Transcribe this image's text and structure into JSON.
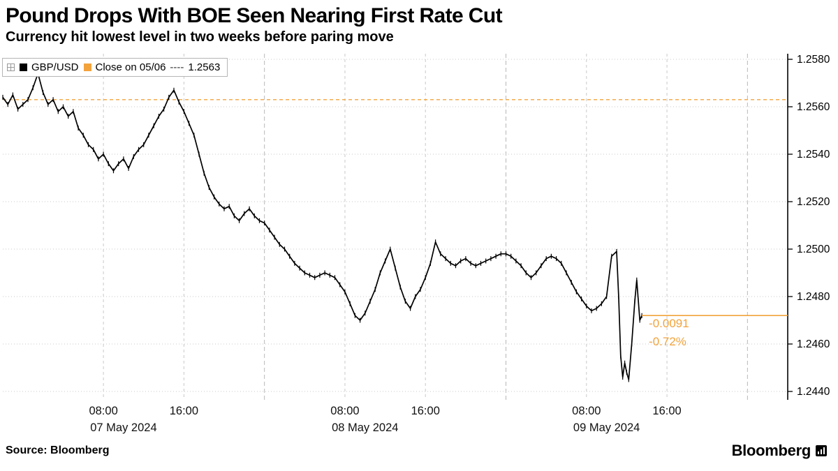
{
  "header": {
    "title": "Pound Drops With BOE Seen Nearing First Rate Cut",
    "subtitle": "Currency hit lowest level in two weeks before paring move"
  },
  "legend": {
    "series_label": "GBP/USD",
    "series_color": "#000000",
    "close_label": "Close on 05/06",
    "close_dash": "----",
    "close_value": "1.2563",
    "close_color": "#F2A33C"
  },
  "chart_data": {
    "type": "line",
    "title": "Pound Drops With BOE Seen Nearing First Rate Cut",
    "subtitle": "Currency hit lowest level in two weeks before paring move",
    "series": [
      {
        "name": "GBP/USD",
        "color": "#000000",
        "x_hours_from_07may": [
          -2,
          -1.5,
          -1,
          -0.5,
          0,
          0.5,
          1,
          1.5,
          2,
          2.5,
          3,
          3.5,
          4,
          4.5,
          5,
          5.5,
          6,
          6.5,
          7,
          7.5,
          8,
          8.5,
          9,
          9.5,
          10,
          10.5,
          11,
          11.5,
          12,
          12.5,
          13,
          13.5,
          14,
          14.5,
          15,
          15.5,
          16,
          16.5,
          17,
          17.5,
          18,
          18.5,
          19,
          19.5,
          20,
          20.5,
          21,
          21.5,
          22,
          22.5,
          23,
          23.5,
          24,
          24.5,
          25,
          25.5,
          26,
          26.5,
          27,
          27.5,
          28,
          28.5,
          29,
          29.5,
          30,
          30.5,
          31,
          31.5,
          32,
          32.5,
          33,
          33.5,
          34,
          34.5,
          35,
          35.5,
          36,
          36.5,
          37,
          37.5,
          38,
          38.5,
          39,
          39.5,
          40,
          40.5,
          41,
          41.5,
          42,
          42.5,
          43,
          43.5,
          44,
          44.5,
          45,
          45.5,
          46,
          46.5,
          47,
          47.5,
          48,
          48.5,
          49,
          49.5,
          50,
          50.5,
          51,
          51.5,
          52,
          52.5,
          53,
          53.5,
          54,
          54.5,
          55,
          55.5,
          56,
          56.5,
          57,
          57.5,
          58,
          58.5,
          59,
          59.2,
          59.4,
          59.6,
          59.8,
          60,
          60.2,
          60.5,
          60.8,
          61,
          61.3,
          61.5
        ],
        "values": [
          1.2564,
          1.2561,
          1.2565,
          1.2559,
          1.2561,
          1.2563,
          1.2568,
          1.2574,
          1.2566,
          1.2561,
          1.2563,
          1.2558,
          1.256,
          1.2556,
          1.2558,
          1.2551,
          1.2548,
          1.2544,
          1.2542,
          1.2538,
          1.254,
          1.2536,
          1.2533,
          1.2536,
          1.2538,
          1.2534,
          1.2539,
          1.2542,
          1.2544,
          1.2548,
          1.2552,
          1.2556,
          1.2559,
          1.2564,
          1.2567,
          1.2562,
          1.2558,
          1.2553,
          1.2548,
          1.254,
          1.2532,
          1.2526,
          1.2522,
          1.2519,
          1.2517,
          1.2518,
          1.2514,
          1.2512,
          1.2515,
          1.2517,
          1.2514,
          1.2512,
          1.2511,
          1.2508,
          1.2505,
          1.2502,
          1.25,
          1.2497,
          1.2494,
          1.2492,
          1.249,
          1.2489,
          1.2488,
          1.2489,
          1.249,
          1.2489,
          1.2488,
          1.2485,
          1.2482,
          1.2477,
          1.2472,
          1.247,
          1.2473,
          1.2478,
          1.2483,
          1.249,
          1.2495,
          1.25,
          1.2492,
          1.2484,
          1.2478,
          1.2475,
          1.248,
          1.2483,
          1.2488,
          1.2494,
          1.2503,
          1.2498,
          1.2496,
          1.2494,
          1.2493,
          1.2495,
          1.2496,
          1.2494,
          1.2493,
          1.2494,
          1.2495,
          1.2496,
          1.2497,
          1.2498,
          1.2498,
          1.2497,
          1.2495,
          1.2493,
          1.249,
          1.2488,
          1.249,
          1.2493,
          1.2496,
          1.2497,
          1.2496,
          1.2494,
          1.249,
          1.2486,
          1.2482,
          1.2479,
          1.2476,
          1.2474,
          1.2475,
          1.2477,
          1.248,
          1.2497,
          1.2499,
          1.248,
          1.2455,
          1.2446,
          1.2452,
          1.2448,
          1.2445,
          1.246,
          1.2478,
          1.2487,
          1.247,
          1.2472
        ]
      }
    ],
    "x_axis": {
      "domain_hours": [
        -2,
        76
      ],
      "time_ticks": [
        {
          "t": 8,
          "label": "08:00"
        },
        {
          "t": 16,
          "label": "16:00"
        },
        {
          "t": 32,
          "label": "08:00"
        },
        {
          "t": 40,
          "label": "16:00"
        },
        {
          "t": 56,
          "label": "08:00"
        },
        {
          "t": 64,
          "label": "16:00"
        }
      ],
      "day_labels": [
        {
          "t": 10,
          "label": "07 May 2024"
        },
        {
          "t": 34,
          "label": "08 May 2024"
        },
        {
          "t": 58,
          "label": "09 May 2024"
        }
      ],
      "day_boundaries": [
        24,
        48,
        72
      ]
    },
    "y_axis": {
      "lim": [
        1.244,
        1.258
      ],
      "tick_step": 0.002,
      "ticks": [
        1.258,
        1.256,
        1.254,
        1.252,
        1.25,
        1.248,
        1.246,
        1.244
      ]
    },
    "reference_lines": [
      {
        "name": "close-previous",
        "label": "Close on 05/06",
        "value": 1.2563,
        "style": "dashed",
        "color": "#F2A33C"
      },
      {
        "name": "last-price",
        "value": 1.2472,
        "style": "solid",
        "color": "#F2A33C"
      }
    ],
    "last_price": 1.2472,
    "annotations": [
      {
        "text": "-0.0091"
      },
      {
        "text": "-0.72%"
      }
    ],
    "grid": true,
    "legend_position": "top-left",
    "colors": {
      "accent_orange": "#F2A33C",
      "grid": "#c9c9c9",
      "day_grid": "#b8b8b8",
      "axis": "#000000",
      "tick_text": "#111111"
    }
  },
  "footer": {
    "source": "Source: Bloomberg",
    "brand": "Bloomberg"
  }
}
